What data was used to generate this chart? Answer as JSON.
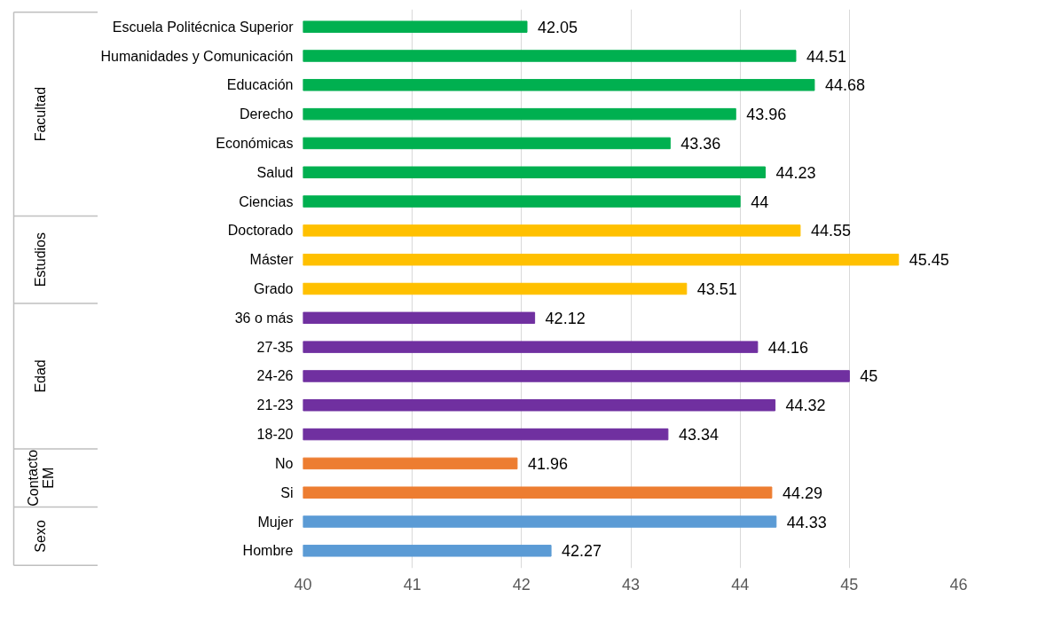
{
  "chart_data": {
    "type": "bar",
    "orientation": "horizontal",
    "categories": [
      "Escuela Politécnica Superior",
      "Humanidades y Comunicación",
      "Educación",
      "Derecho",
      "Económicas",
      "Salud",
      "Ciencias",
      "Doctorado",
      "Máster",
      "Grado",
      "36 o más",
      "27-35",
      "24-26",
      "21-23",
      "18-20",
      "No",
      "Si",
      "Mujer",
      "Hombre"
    ],
    "series": [
      {
        "color": "#00b050",
        "values": [
          42.05,
          44.51,
          44.68,
          43.96,
          43.36,
          44.23,
          44,
          null,
          null,
          null,
          null,
          null,
          null,
          null,
          null,
          null,
          null,
          null,
          null
        ]
      },
      {
        "color": "#ffc000",
        "values": [
          null,
          null,
          null,
          null,
          null,
          null,
          null,
          44.55,
          45.45,
          43.51,
          null,
          null,
          null,
          null,
          null,
          null,
          null,
          null,
          null
        ]
      },
      {
        "color": "#7030a0",
        "values": [
          null,
          null,
          null,
          null,
          null,
          null,
          null,
          null,
          null,
          null,
          42.12,
          44.16,
          45,
          44.32,
          43.34,
          null,
          null,
          null,
          null
        ]
      },
      {
        "color": "#ed7d31",
        "values": [
          null,
          null,
          null,
          null,
          null,
          null,
          null,
          null,
          null,
          null,
          null,
          null,
          null,
          null,
          null,
          41.96,
          44.29,
          null,
          null
        ]
      },
      {
        "color": "#5b9bd5",
        "values": [
          null,
          null,
          null,
          null,
          null,
          null,
          null,
          null,
          null,
          null,
          null,
          null,
          null,
          null,
          null,
          null,
          null,
          44.33,
          42.27
        ]
      }
    ],
    "xlim": [
      40,
      46
    ],
    "xticks": [
      40,
      41,
      42,
      43,
      44,
      45,
      46
    ],
    "grid": "x",
    "data_labels": true,
    "annotations": [
      "Facultad",
      "Estudios",
      "Edad",
      "Contacto EM",
      "Sexo"
    ]
  }
}
